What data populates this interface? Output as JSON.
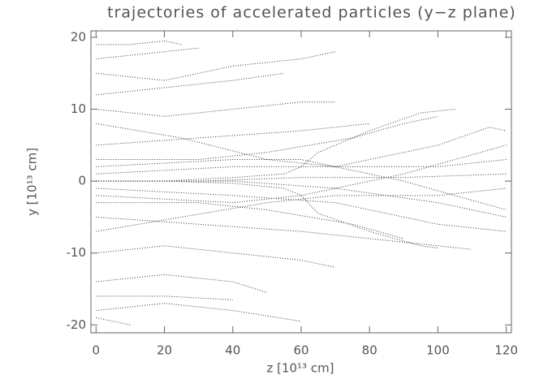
{
  "chart_data": {
    "type": "line",
    "title": "trajectories of accelerated particles (y−z plane)",
    "x_label": "z [10¹³ cm]",
    "y_label": "y [10¹³ cm]",
    "color": "#333333",
    "xlim": [
      -1.5,
      121.5
    ],
    "xticks": [
      0,
      20,
      40,
      60,
      80,
      100,
      120
    ],
    "ylim": [
      -21.1,
      20.9
    ],
    "yticks": [
      20,
      10,
      0,
      -10,
      -20
    ],
    "series": [
      {
        "x": [
          0,
          20,
          40,
          55,
          60,
          65,
          80,
          95,
          105
        ],
        "values": [
          0,
          0,
          0.5,
          1,
          2,
          4,
          7,
          9.5,
          10
        ]
      },
      {
        "x": [
          0,
          20,
          40,
          55,
          60,
          65,
          80,
          95,
          100
        ],
        "values": [
          0,
          0,
          -0.3,
          -1,
          -2,
          -4.5,
          -7,
          -9,
          -9.3
        ]
      },
      {
        "x": [
          0,
          30,
          60,
          90,
          120
        ],
        "values": [
          0,
          0,
          0.5,
          0.5,
          1
        ]
      },
      {
        "x": [
          0,
          40,
          70,
          100,
          120
        ],
        "values": [
          0,
          0,
          -1,
          -3,
          -5
        ]
      },
      {
        "x": [
          0,
          40,
          70,
          100,
          115,
          120
        ],
        "values": [
          1,
          2,
          2,
          5,
          7.5,
          7
        ]
      },
      {
        "x": [
          0,
          40,
          70,
          100,
          120
        ],
        "values": [
          -1,
          -2,
          -3,
          -6,
          -7
        ]
      },
      {
        "x": [
          0,
          20,
          40,
          60,
          70
        ],
        "values": [
          15,
          14,
          16,
          17,
          18
        ]
      },
      {
        "x": [
          0,
          10,
          20,
          25
        ],
        "values": [
          19,
          19,
          19.5,
          19
        ]
      },
      {
        "x": [
          0,
          20,
          40,
          60
        ],
        "values": [
          -18,
          -17,
          -18,
          -19.5
        ]
      },
      {
        "x": [
          0,
          10
        ],
        "values": [
          -19,
          -20
        ]
      },
      {
        "x": [
          0,
          20,
          40,
          60,
          70
        ],
        "values": [
          10,
          9,
          10,
          11,
          11
        ]
      },
      {
        "x": [
          0,
          20,
          40,
          60,
          70
        ],
        "values": [
          -10,
          -9,
          -10,
          -11,
          -12
        ]
      },
      {
        "x": [
          0,
          30,
          60,
          80
        ],
        "values": [
          5,
          6,
          7,
          8
        ]
      },
      {
        "x": [
          0,
          30,
          60,
          80,
          110
        ],
        "values": [
          -5,
          -6,
          -7,
          -8,
          -9.5
        ]
      },
      {
        "x": [
          0,
          20,
          40,
          55
        ],
        "values": [
          12,
          13,
          14,
          15
        ]
      },
      {
        "x": [
          0,
          20,
          40,
          50
        ],
        "values": [
          -14,
          -13,
          -14,
          -15.5
        ]
      },
      {
        "x": [
          0,
          30,
          50,
          75,
          90,
          100
        ],
        "values": [
          3,
          3,
          4,
          6,
          8,
          9
        ]
      },
      {
        "x": [
          0,
          30,
          50,
          75,
          90
        ],
        "values": [
          -3,
          -3,
          -4,
          -6,
          -8
        ]
      },
      {
        "x": [
          0,
          25,
          50,
          70,
          100,
          120
        ],
        "values": [
          8,
          6,
          3,
          2,
          2,
          3
        ]
      },
      {
        "x": [
          0,
          25,
          50,
          70,
          100,
          120
        ],
        "values": [
          -7,
          -5,
          -3,
          -2,
          -2,
          -1
        ]
      },
      {
        "x": [
          0,
          20,
          30
        ],
        "values": [
          17,
          18,
          18.5
        ]
      },
      {
        "x": [
          0,
          20,
          40
        ],
        "values": [
          -16,
          -16,
          -16.5
        ]
      },
      {
        "x": [
          0,
          40,
          60,
          90,
          120
        ],
        "values": [
          2,
          3,
          3,
          0,
          -4
        ]
      },
      {
        "x": [
          0,
          40,
          60,
          90,
          120
        ],
        "values": [
          -2,
          -3,
          -2,
          1,
          5
        ]
      }
    ]
  }
}
